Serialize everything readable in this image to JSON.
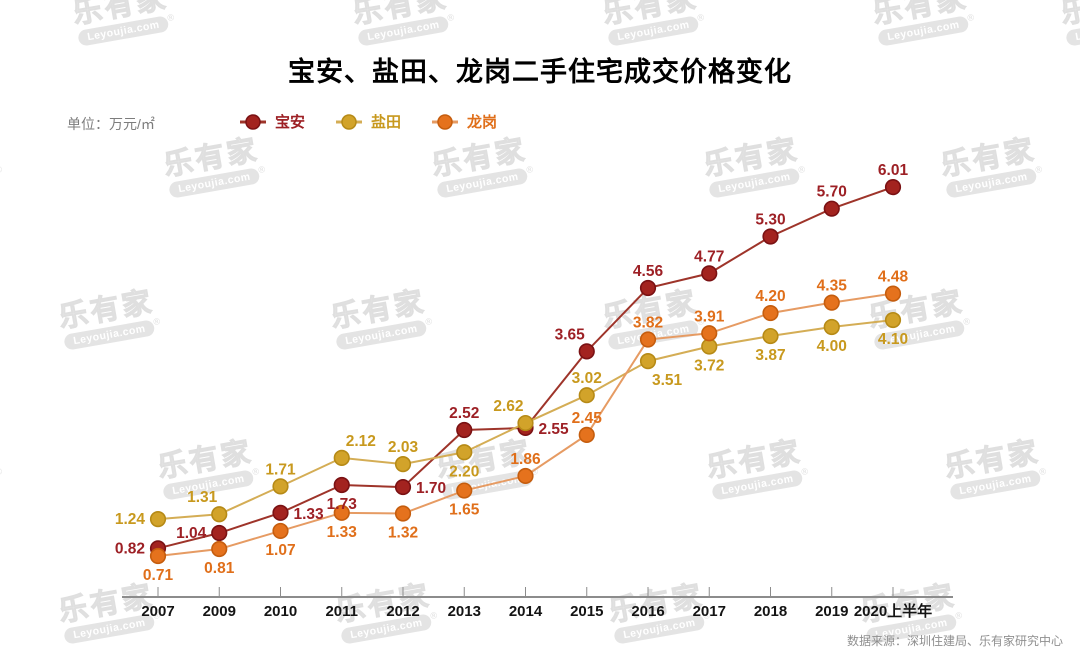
{
  "page": {
    "unit_label": "单位：万元/㎡",
    "source": "数据来源：深圳住建局、乐有家研究中心",
    "watermark": {
      "cn": "乐有家",
      "en": "Leyoujia.com",
      "reg": "®"
    }
  },
  "chart_data": {
    "type": "line",
    "title": "宝安、盐田、龙岗二手住宅成交价格变化",
    "ylabel": "万元/㎡",
    "legend_position": "top",
    "grid": false,
    "ylim": [
      0.5,
      6.5
    ],
    "categories": [
      "2007",
      "2009",
      "2010",
      "2011",
      "2012",
      "2013",
      "2014",
      "2015",
      "2016",
      "2017",
      "2018",
      "2019",
      "2020上半年"
    ],
    "series": [
      {
        "name": "宝安",
        "line_color": "#9e342a",
        "marker_fill": "#a3231f",
        "marker_ring": "#7a1113",
        "label_color": "#9d2025",
        "values": [
          0.82,
          1.04,
          1.33,
          1.73,
          1.7,
          2.52,
          2.55,
          3.65,
          4.56,
          4.77,
          5.3,
          5.7,
          6.01
        ],
        "label_pos": [
          "left",
          "left",
          "right",
          "below",
          "right",
          "above",
          "right",
          "above-left",
          "above",
          "above",
          "above",
          "above",
          "above"
        ]
      },
      {
        "name": "盐田",
        "line_color": "#d4ad55",
        "marker_fill": "#d2a32a",
        "marker_ring": "#b68a16",
        "label_color": "#c8991e",
        "values": [
          1.24,
          1.31,
          1.71,
          2.12,
          2.03,
          2.2,
          2.62,
          3.02,
          3.51,
          3.72,
          3.87,
          4.0,
          4.1
        ],
        "label_pos": [
          "left",
          "above-left",
          "above",
          "above-right",
          "above",
          "below",
          "above-left",
          "above",
          "below-right",
          "below",
          "below",
          "below",
          "below"
        ]
      },
      {
        "name": "龙岗",
        "line_color": "#e69b63",
        "marker_fill": "#e5721d",
        "marker_ring": "#c55d0e",
        "label_color": "#e06f1a",
        "values": [
          0.71,
          0.81,
          1.07,
          1.33,
          1.32,
          1.65,
          1.86,
          2.45,
          3.82,
          3.91,
          4.2,
          4.35,
          4.48
        ],
        "label_pos": [
          "below",
          "below",
          "below",
          "below",
          "below",
          "below",
          "above",
          "above",
          "above",
          "above",
          "above",
          "above",
          "above"
        ]
      }
    ]
  }
}
